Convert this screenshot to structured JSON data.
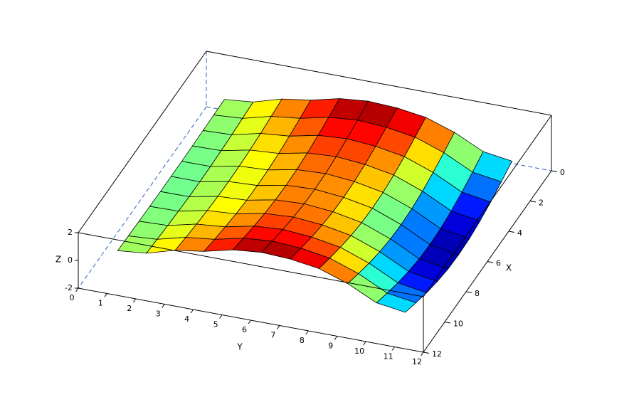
{
  "chart_data": {
    "type": "surface",
    "x": [
      1,
      2,
      3,
      4,
      5,
      6,
      7,
      8,
      9,
      10,
      11
    ],
    "y": [
      1,
      2,
      3,
      4,
      5,
      6,
      7,
      8,
      9,
      10,
      11
    ],
    "z": [
      [
        0,
        0.2,
        0.8,
        1.1,
        1.6,
        1.8,
        1.7,
        1.4,
        0.7,
        -0.3,
        -0.6
      ],
      [
        -0.03,
        0.11,
        0.64,
        0.88,
        1.35,
        1.52,
        1.39,
        1.06,
        0.33,
        -0.69,
        -1.0
      ],
      [
        -0.06,
        0.02,
        0.5,
        0.69,
        1.13,
        1.27,
        1.11,
        0.75,
        -0.01,
        -1.04,
        -1.37
      ],
      [
        -0.08,
        -0.04,
        0.39,
        0.53,
        0.95,
        1.07,
        0.89,
        0.51,
        -0.27,
        -1.31,
        -1.65
      ],
      [
        -0.1,
        -0.09,
        0.32,
        0.43,
        0.84,
        0.94,
        0.75,
        0.35,
        -0.44,
        -1.49,
        -1.84
      ],
      [
        -0.1,
        -0.1,
        0.3,
        0.4,
        0.8,
        0.9,
        0.7,
        0.3,
        -0.5,
        -1.55,
        -1.9
      ],
      [
        -0.1,
        -0.09,
        0.32,
        0.43,
        0.84,
        0.94,
        0.75,
        0.35,
        -0.44,
        -1.49,
        -1.84
      ],
      [
        -0.08,
        -0.04,
        0.39,
        0.53,
        0.95,
        1.07,
        0.89,
        0.51,
        -0.27,
        -1.31,
        -1.65
      ],
      [
        -0.06,
        0.02,
        0.5,
        0.69,
        1.13,
        1.27,
        1.11,
        0.75,
        -0.01,
        -1.04,
        -1.37
      ],
      [
        -0.03,
        0.11,
        0.64,
        0.88,
        1.35,
        1.52,
        1.39,
        1.06,
        0.33,
        -0.69,
        -1.0
      ],
      [
        0,
        0.2,
        0.8,
        1.1,
        1.6,
        1.8,
        1.7,
        1.4,
        0.7,
        -0.3,
        -0.6
      ]
    ],
    "xlim": [
      0,
      12
    ],
    "ylim": [
      0,
      12
    ],
    "zlim": [
      -2,
      2
    ],
    "xticks": [
      0,
      2,
      4,
      6,
      8,
      10,
      12
    ],
    "yticks": [
      0,
      1,
      2,
      3,
      4,
      5,
      6,
      7,
      8,
      9,
      10,
      11,
      12
    ],
    "zticks": [
      -2,
      0,
      2
    ],
    "xlabel": "X",
    "ylabel": "Y",
    "zlabel": "Z",
    "colormap": "jet"
  }
}
